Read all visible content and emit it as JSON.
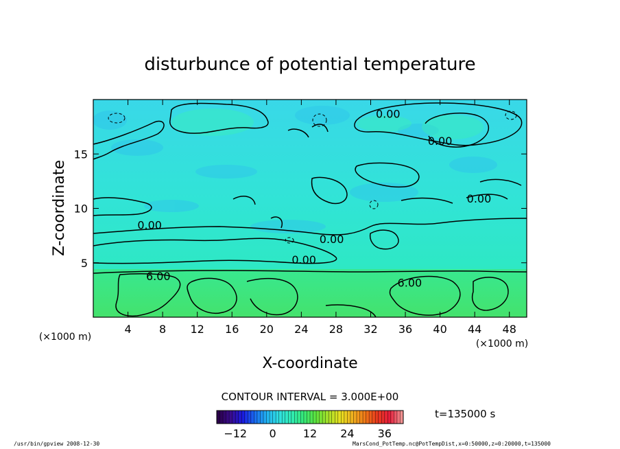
{
  "chart_data": {
    "type": "heatmap",
    "title": "disturbunce of potential temperature",
    "xlabel": "X-coordinate",
    "ylabel": "Z-coordinate",
    "x_unit": "(×1000 m)",
    "y_unit": "(×1000 m)",
    "xlim": [
      0,
      50
    ],
    "ylim": [
      0,
      20
    ],
    "x_ticks": [
      4,
      8,
      12,
      16,
      20,
      24,
      28,
      32,
      36,
      40,
      44,
      48
    ],
    "y_ticks": [
      5,
      10,
      15
    ],
    "contour_interval": "CONTOUR INTERVAL = 3.000E+00",
    "time_label": "t=135000 s",
    "colorbar": {
      "range": [
        -18,
        42
      ],
      "ticks": [
        -12,
        0,
        12,
        24,
        36
      ],
      "colors": [
        "#2a004a",
        "#3a0c8e",
        "#1a1ae0",
        "#1a6cf0",
        "#22b4f0",
        "#30e0e0",
        "#30ecb4",
        "#36e878",
        "#5ee23c",
        "#a8e02a",
        "#e8e020",
        "#f0b020",
        "#f07818",
        "#e83a1e",
        "#e61e3c",
        "#f09090"
      ]
    },
    "regions": [
      {
        "z_range": [
          0,
          4.5
        ],
        "value_approx": 6,
        "color": "#3fe67a"
      },
      {
        "z_range": [
          4.5,
          20
        ],
        "value_approx": 0,
        "color": "#31e2d2"
      }
    ],
    "contour_labels": [
      {
        "text": "0.00",
        "x": 34,
        "z": 18.7
      },
      {
        "text": "0.00",
        "x": 40,
        "z": 16.2
      },
      {
        "text": "0.00",
        "x": 44.5,
        "z": 10.9
      },
      {
        "text": "0.00",
        "x": 6.5,
        "z": 8.5
      },
      {
        "text": "0.00",
        "x": 27.5,
        "z": 7.2
      },
      {
        "text": "0.00",
        "x": 24.3,
        "z": 5.3
      },
      {
        "text": "6.00",
        "x": 7.5,
        "z": 3.8
      },
      {
        "text": "6.00",
        "x": 36.5,
        "z": 3.2
      }
    ]
  },
  "footer": {
    "left": "/usr/bin/gpview   2008-12-30",
    "right": "MarsCond_PotTemp.nc@PotTempDist,x=0:50000,z=0:20000,t=135000"
  }
}
